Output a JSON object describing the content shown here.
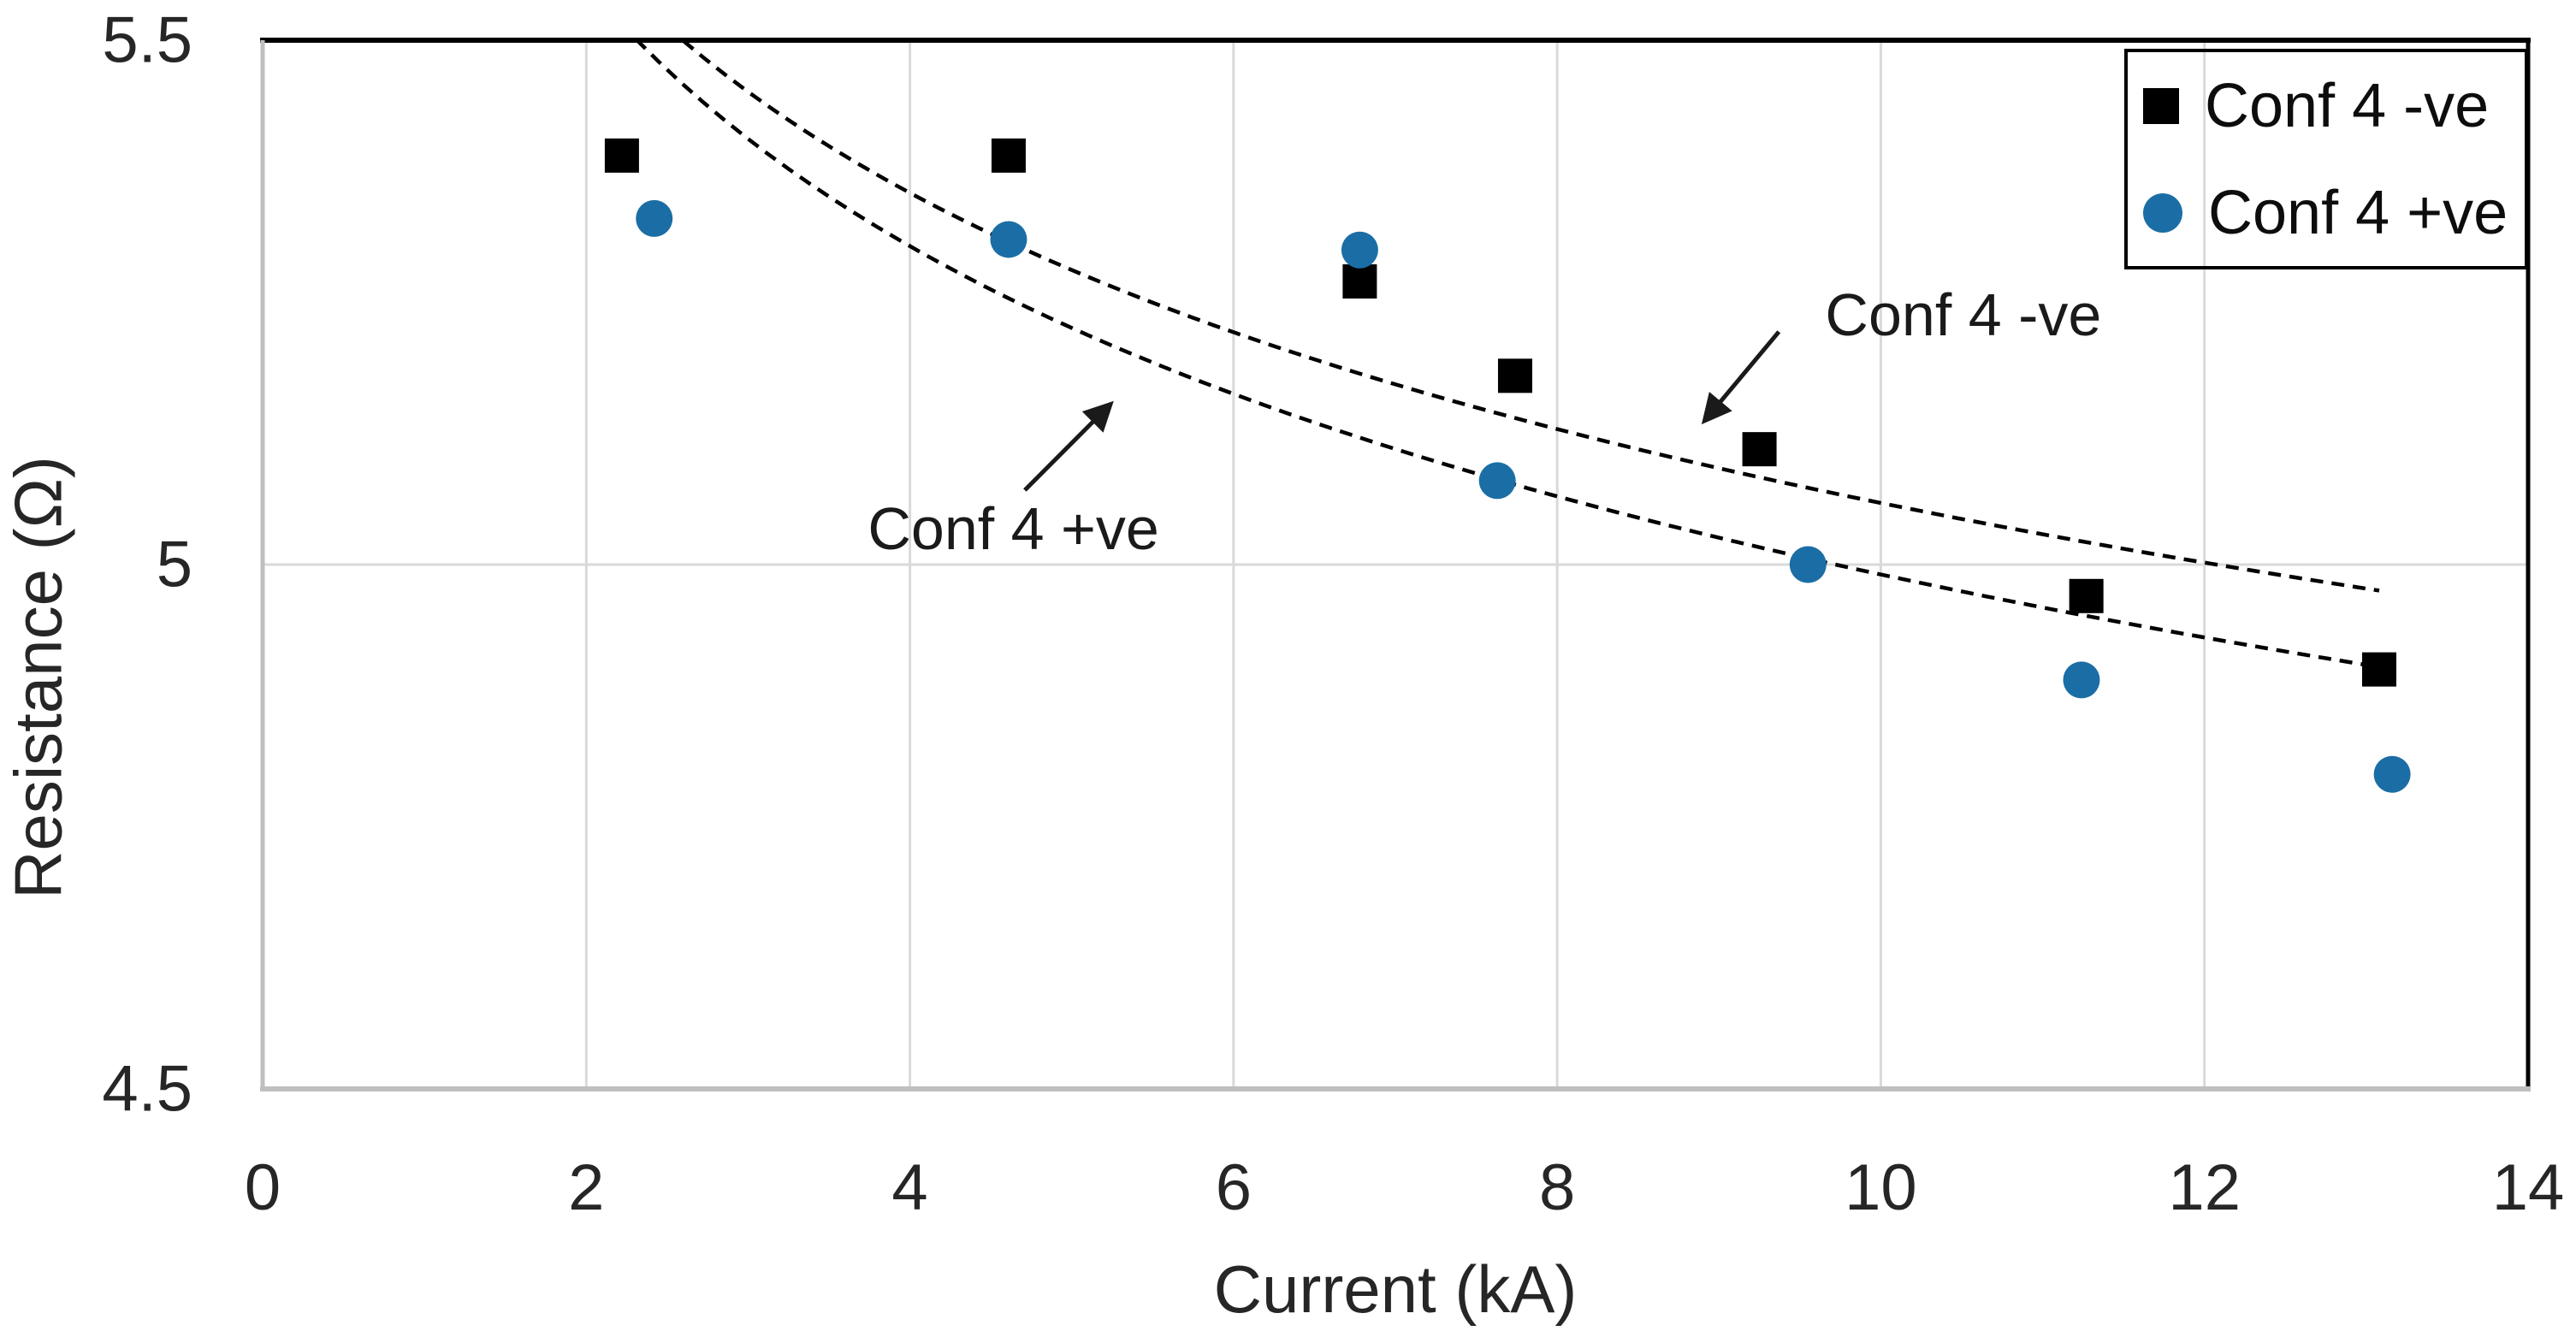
{
  "chart_data": {
    "type": "scatter",
    "title": "",
    "xlabel": "Current (kA)",
    "ylabel": "Resistance (Ω)",
    "xlim": [
      0,
      14
    ],
    "ylim": [
      4.5,
      5.5
    ],
    "x_ticks": [
      {
        "v": 0,
        "label": "0"
      },
      {
        "v": 2,
        "label": "2"
      },
      {
        "v": 4,
        "label": "4"
      },
      {
        "v": 6,
        "label": "6"
      },
      {
        "v": 8,
        "label": "8"
      },
      {
        "v": 10,
        "label": "10"
      },
      {
        "v": 12,
        "label": "12"
      },
      {
        "v": 14,
        "label": "14"
      }
    ],
    "y_ticks": [
      {
        "v": 5.5,
        "label": "5.5"
      },
      {
        "v": 5,
        "label": "5"
      },
      {
        "v": 4.5,
        "label": "4.5"
      }
    ],
    "grid": {
      "vertical": true,
      "horizontal": true
    },
    "legend_position": "top-right",
    "series": [
      {
        "name": "Conf 4 -ve",
        "marker": "square",
        "color": "#000000",
        "points": [
          [
            2.22,
            5.39
          ],
          [
            4.61,
            5.39
          ],
          [
            6.78,
            5.27
          ],
          [
            7.74,
            5.18
          ],
          [
            9.25,
            5.11
          ],
          [
            11.27,
            4.97
          ],
          [
            13.08,
            4.9
          ]
        ]
      },
      {
        "name": "Conf 4 +ve",
        "marker": "circle",
        "color": "#1B6EA5",
        "points": [
          [
            2.42,
            5.33
          ],
          [
            4.61,
            5.31
          ],
          [
            6.78,
            5.3
          ],
          [
            7.63,
            5.08
          ],
          [
            9.55,
            5.0
          ],
          [
            11.24,
            4.89
          ],
          [
            13.16,
            4.8
          ]
        ]
      }
    ],
    "trendlines": [
      {
        "name": "Conf 4 -ve",
        "model": "power",
        "a": 5.835,
        "b": -0.062,
        "x_start": 2.6,
        "x_end": 13.08
      },
      {
        "name": "Conf 4 +ve",
        "model": "power",
        "a": 5.815,
        "b": -0.0664,
        "x_start": 2.31,
        "x_end": 13.08
      }
    ],
    "annotations": [
      {
        "text": "Conf 4 -ve",
        "label_x": 10.51,
        "label_y": 5.238,
        "arrow_from_x": 9.37,
        "arrow_from_y": 5.222,
        "arrow_to_x": 8.91,
        "arrow_to_y": 5.137
      },
      {
        "text": "Conf 4 +ve",
        "label_x": 4.64,
        "label_y": 5.034,
        "arrow_from_x": 4.71,
        "arrow_from_y": 5.071,
        "arrow_to_x": 5.24,
        "arrow_to_y": 5.153
      }
    ],
    "colors": {
      "neg_series": "#000000",
      "pos_series": "#1B6EA5",
      "gridline": "#D9D9D9",
      "axis_gray": "#BFBFBF",
      "border_black": "#000000",
      "trendline": "#000000"
    }
  }
}
